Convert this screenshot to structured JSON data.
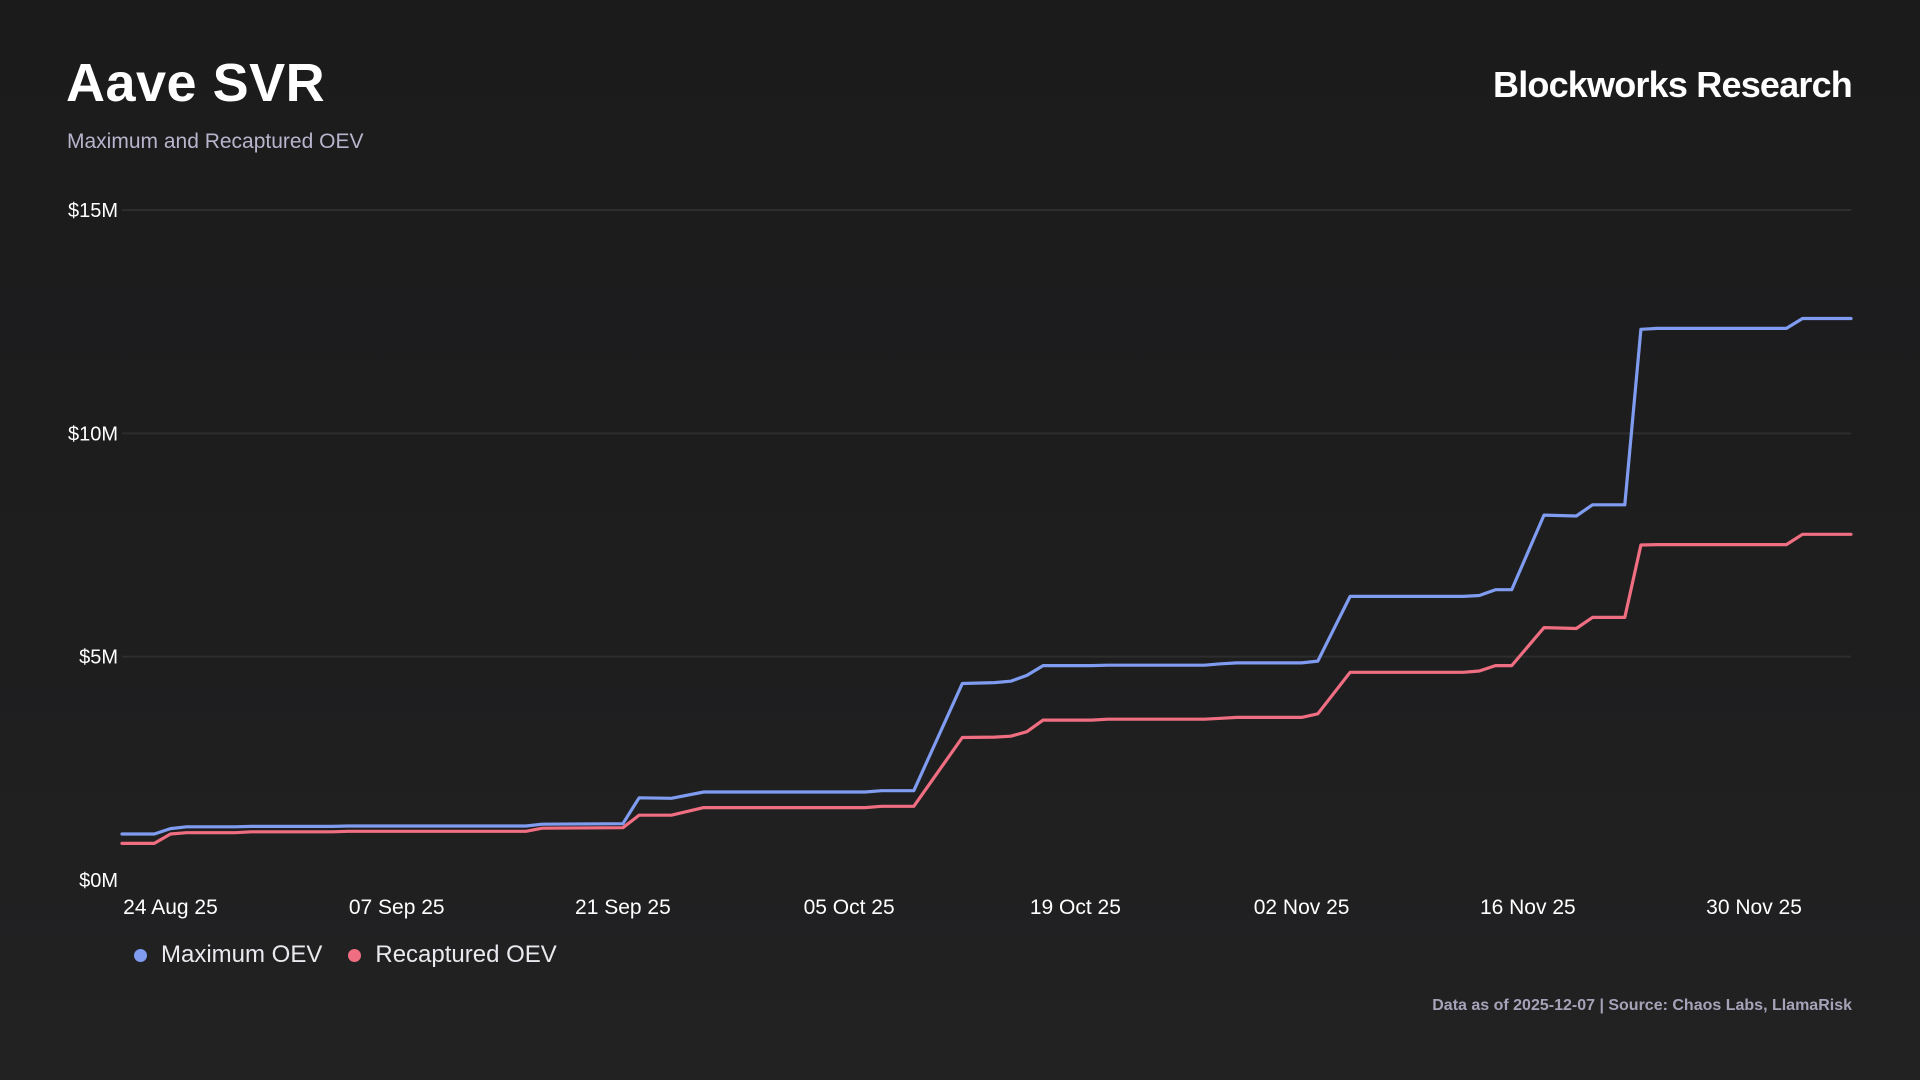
{
  "header": {
    "title": "Aave SVR",
    "subtitle": "Maximum and Recaptured OEV",
    "brand": "Blockworks Research"
  },
  "footer": {
    "note": "Data as of 2025-12-07 | Source: Chaos Labs, LlamaRisk"
  },
  "colors": {
    "max_oev": "#7f9cf0",
    "recaptured_oev": "#f06e81",
    "grid": "#2d2d2e",
    "axis_text": "#ffffff"
  },
  "chart_data": {
    "type": "line",
    "title": "Aave SVR",
    "subtitle": "Maximum and Recaptured OEV",
    "xlabel": "",
    "ylabel": "",
    "ylim": [
      0,
      15
    ],
    "yticks": [
      0,
      5,
      10,
      15
    ],
    "ytick_labels": [
      "$0M",
      "$5M",
      "$10M",
      "$15M"
    ],
    "xlim": [
      0,
      107
    ],
    "xticks": [
      3,
      17,
      31,
      45,
      59,
      73,
      87,
      101
    ],
    "xtick_labels": [
      "24 Aug 25",
      "07 Sep 25",
      "21 Sep 25",
      "05 Oct 25",
      "19 Oct 25",
      "02 Nov 25",
      "16 Nov 25",
      "30 Nov 25"
    ],
    "x_unit": "days since 21 Aug 25",
    "grid": true,
    "legend_position": "bottom-left",
    "series": [
      {
        "name": "Maximum OEV",
        "points": [
          [
            0,
            1.03
          ],
          [
            2,
            1.03
          ],
          [
            3,
            1.15
          ],
          [
            4,
            1.19
          ],
          [
            7,
            1.19
          ],
          [
            8,
            1.2
          ],
          [
            13,
            1.2
          ],
          [
            14,
            1.21
          ],
          [
            25,
            1.21
          ],
          [
            26,
            1.25
          ],
          [
            31,
            1.26
          ],
          [
            32,
            1.84
          ],
          [
            34,
            1.83
          ],
          [
            36,
            1.97
          ],
          [
            46,
            1.97
          ],
          [
            47,
            2.0
          ],
          [
            49,
            2.0
          ],
          [
            52,
            4.4
          ],
          [
            54,
            4.42
          ],
          [
            55,
            4.45
          ],
          [
            56,
            4.58
          ],
          [
            57,
            4.8
          ],
          [
            60,
            4.8
          ],
          [
            61,
            4.81
          ],
          [
            67,
            4.81
          ],
          [
            68,
            4.84
          ],
          [
            69,
            4.86
          ],
          [
            73,
            4.86
          ],
          [
            74,
            4.9
          ],
          [
            76,
            6.35
          ],
          [
            83,
            6.35
          ],
          [
            84,
            6.37
          ],
          [
            85,
            6.5
          ],
          [
            86,
            6.5
          ],
          [
            88,
            8.17
          ],
          [
            90,
            8.15
          ],
          [
            91,
            8.4
          ],
          [
            93,
            8.4
          ],
          [
            94,
            12.33
          ],
          [
            95,
            12.35
          ],
          [
            103,
            12.35
          ],
          [
            104,
            12.57
          ],
          [
            107,
            12.57
          ]
        ]
      },
      {
        "name": "Recaptured OEV",
        "points": [
          [
            0,
            0.82
          ],
          [
            2,
            0.82
          ],
          [
            3,
            1.03
          ],
          [
            4,
            1.06
          ],
          [
            7,
            1.06
          ],
          [
            8,
            1.08
          ],
          [
            13,
            1.08
          ],
          [
            14,
            1.09
          ],
          [
            25,
            1.09
          ],
          [
            26,
            1.16
          ],
          [
            31,
            1.17
          ],
          [
            32,
            1.45
          ],
          [
            34,
            1.45
          ],
          [
            36,
            1.62
          ],
          [
            46,
            1.62
          ],
          [
            47,
            1.65
          ],
          [
            49,
            1.65
          ],
          [
            52,
            3.19
          ],
          [
            54,
            3.2
          ],
          [
            55,
            3.22
          ],
          [
            56,
            3.32
          ],
          [
            57,
            3.58
          ],
          [
            60,
            3.58
          ],
          [
            61,
            3.6
          ],
          [
            67,
            3.6
          ],
          [
            68,
            3.62
          ],
          [
            69,
            3.64
          ],
          [
            73,
            3.64
          ],
          [
            74,
            3.72
          ],
          [
            76,
            4.65
          ],
          [
            83,
            4.65
          ],
          [
            84,
            4.68
          ],
          [
            85,
            4.8
          ],
          [
            86,
            4.8
          ],
          [
            88,
            5.65
          ],
          [
            90,
            5.63
          ],
          [
            91,
            5.88
          ],
          [
            93,
            5.88
          ],
          [
            94,
            7.5
          ],
          [
            95,
            7.51
          ],
          [
            103,
            7.51
          ],
          [
            104,
            7.74
          ],
          [
            107,
            7.74
          ]
        ]
      }
    ]
  }
}
